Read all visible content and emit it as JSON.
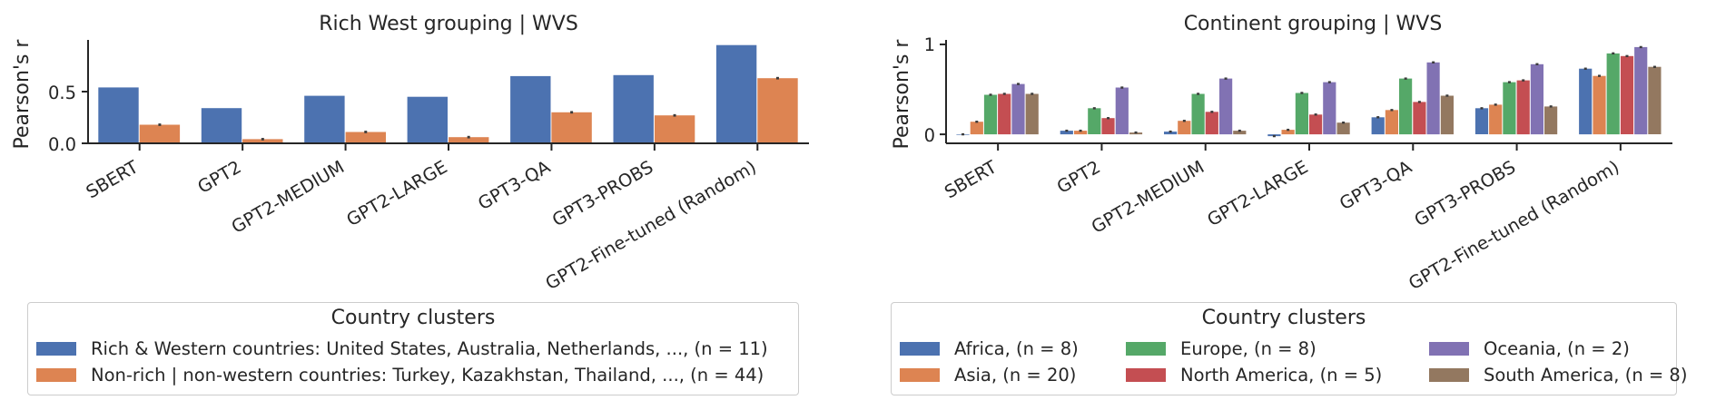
{
  "chart_data": [
    {
      "type": "bar",
      "title": "Rich West grouping | WVS",
      "xlabel": "",
      "ylabel": "Pearson's r",
      "ylim": [
        0,
        1
      ],
      "yticks": [
        "0.0",
        "0.5"
      ],
      "categories": [
        "SBERT",
        "GPT2",
        "GPT2-MEDIUM",
        "GPT2-LARGE",
        "GPT3-QA",
        "GPT3-PROBS",
        "GPT2-Fine-tuned (Random)"
      ],
      "series": [
        {
          "name": "Rich & Western countries: United States, Australia, Netherlands, ..., (n = 11)",
          "color": "#4c72b0",
          "values": [
            0.54,
            0.34,
            0.46,
            0.45,
            0.65,
            0.66,
            0.95
          ]
        },
        {
          "name": "Non-rich | non-western countries: Turkey, Kazakhstan, Thailand, ..., (n = 44)",
          "color": "#dd8452",
          "values": [
            0.18,
            0.04,
            0.11,
            0.06,
            0.3,
            0.27,
            0.63
          ]
        }
      ],
      "legend": {
        "title": "Country clusters",
        "position": "bottom"
      }
    },
    {
      "type": "bar",
      "title": "Continent grouping | WVS",
      "xlabel": "",
      "ylabel": "Pearson's r",
      "ylim": [
        -0.1,
        1.05
      ],
      "yticks": [
        "0",
        "1"
      ],
      "categories": [
        "SBERT",
        "GPT2",
        "GPT2-MEDIUM",
        "GPT2-LARGE",
        "GPT3-QA",
        "GPT3-PROBS",
        "GPT2-Fine-tuned (Random)"
      ],
      "series": [
        {
          "name": "Africa, (n = 8)",
          "color": "#4c72b0",
          "values": [
            0.0,
            0.04,
            0.03,
            -0.02,
            0.19,
            0.29,
            0.73
          ]
        },
        {
          "name": "Asia, (n = 20)",
          "color": "#dd8452",
          "values": [
            0.14,
            0.04,
            0.15,
            0.05,
            0.27,
            0.33,
            0.65
          ]
        },
        {
          "name": "Europe, (n = 8)",
          "color": "#55a868",
          "values": [
            0.44,
            0.29,
            0.45,
            0.46,
            0.62,
            0.58,
            0.9
          ]
        },
        {
          "name": "North America, (n = 5)",
          "color": "#c44e52",
          "values": [
            0.45,
            0.18,
            0.25,
            0.22,
            0.36,
            0.6,
            0.87
          ]
        },
        {
          "name": "Oceania, (n = 2)",
          "color": "#8172b3",
          "values": [
            0.56,
            0.52,
            0.62,
            0.58,
            0.8,
            0.78,
            0.97
          ]
        },
        {
          "name": "South America, (n = 8)",
          "color": "#937860",
          "values": [
            0.45,
            0.02,
            0.04,
            0.13,
            0.43,
            0.31,
            0.75
          ]
        }
      ],
      "legend": {
        "title": "Country clusters",
        "position": "bottom"
      }
    }
  ]
}
